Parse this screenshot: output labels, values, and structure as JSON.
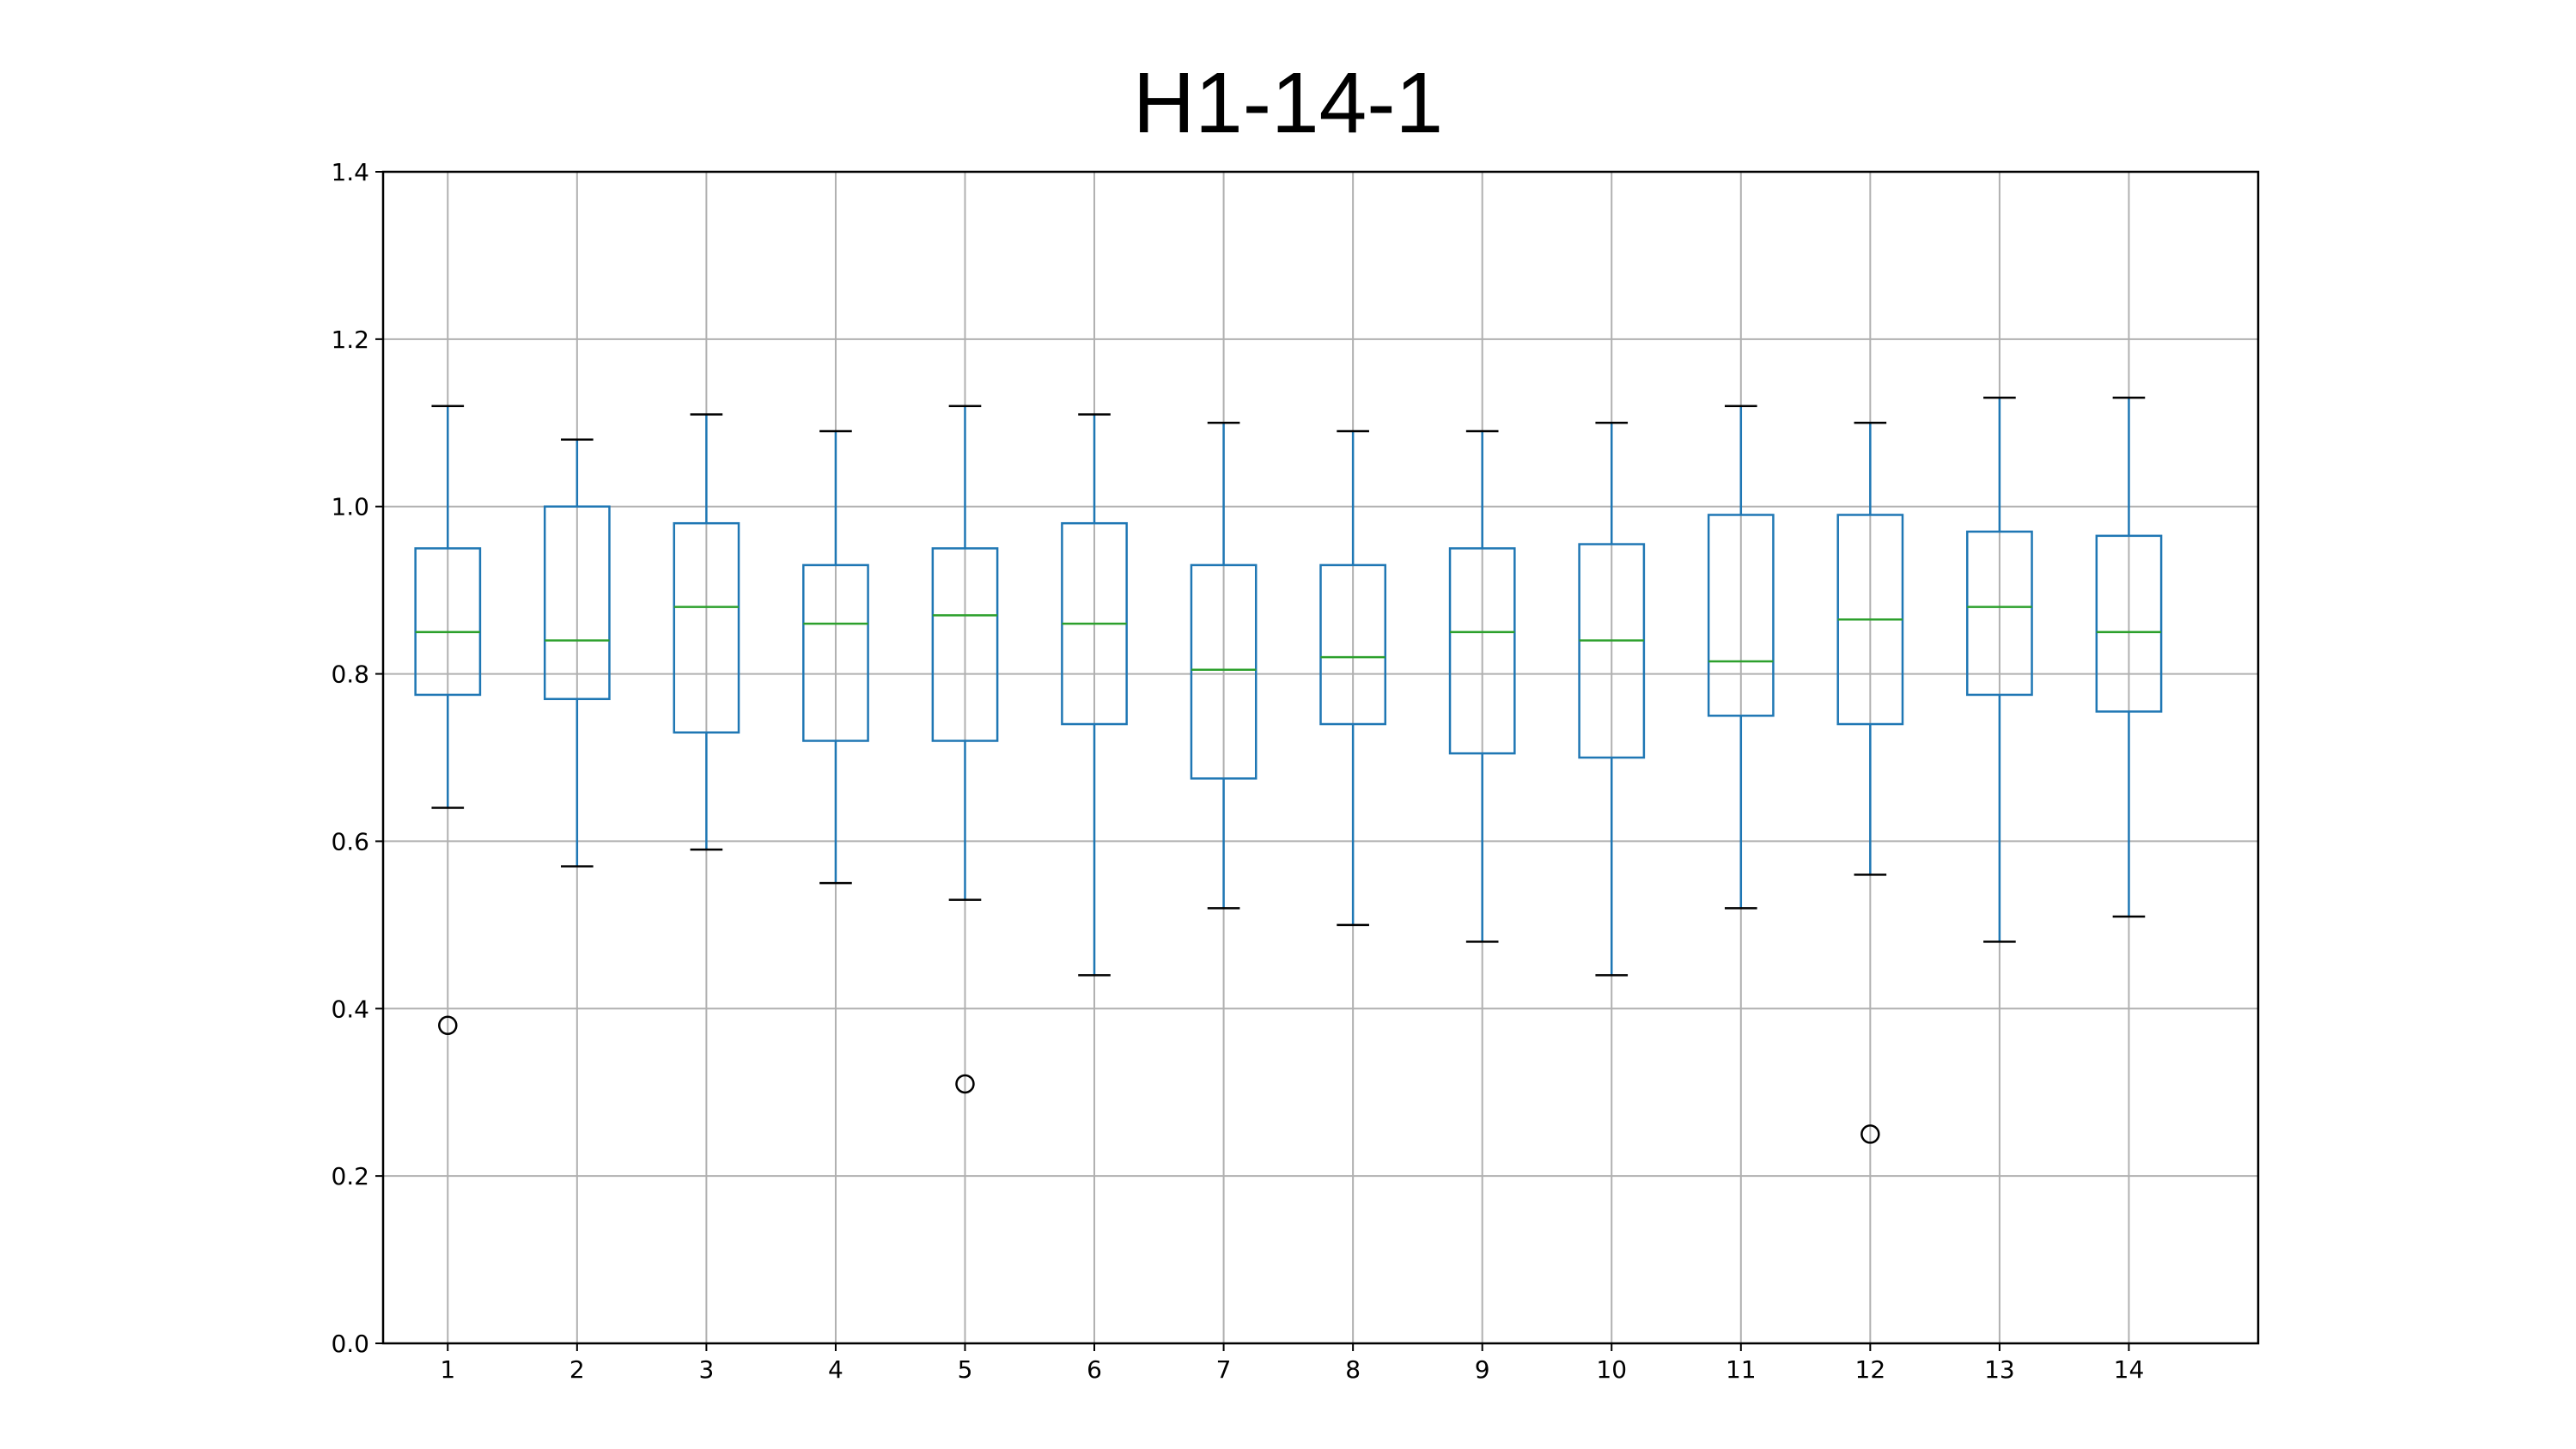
{
  "chart_data": {
    "type": "boxplot",
    "title": "H1-14-1",
    "xlabel": "",
    "ylabel": "",
    "ylim": [
      0,
      1.4
    ],
    "yticks": [
      "0.0",
      "0.2",
      "0.4",
      "0.6",
      "0.8",
      "1.0",
      "1.2",
      "1.4"
    ],
    "categories": [
      "1",
      "2",
      "3",
      "4",
      "5",
      "6",
      "7",
      "8",
      "9",
      "10",
      "11",
      "12",
      "13",
      "14"
    ],
    "grid": true,
    "colors": {
      "box": "#1f77b4",
      "median": "#2ca02c",
      "whisker": "#1f77b4",
      "cap": "#000000",
      "grid": "#b0b0b0",
      "flier": "#000000"
    },
    "boxes": [
      {
        "label": "1",
        "whislo": 0.64,
        "q1": 0.775,
        "med": 0.85,
        "q3": 0.95,
        "whishi": 1.12,
        "fliers": [
          0.38
        ]
      },
      {
        "label": "2",
        "whislo": 0.57,
        "q1": 0.77,
        "med": 0.84,
        "q3": 1.0,
        "whishi": 1.08,
        "fliers": []
      },
      {
        "label": "3",
        "whislo": 0.59,
        "q1": 0.73,
        "med": 0.88,
        "q3": 0.98,
        "whishi": 1.11,
        "fliers": []
      },
      {
        "label": "4",
        "whislo": 0.55,
        "q1": 0.72,
        "med": 0.86,
        "q3": 0.93,
        "whishi": 1.09,
        "fliers": []
      },
      {
        "label": "5",
        "whislo": 0.53,
        "q1": 0.72,
        "med": 0.87,
        "q3": 0.95,
        "whishi": 1.12,
        "fliers": [
          0.31
        ]
      },
      {
        "label": "6",
        "whislo": 0.44,
        "q1": 0.74,
        "med": 0.86,
        "q3": 0.98,
        "whishi": 1.11,
        "fliers": []
      },
      {
        "label": "7",
        "whislo": 0.52,
        "q1": 0.675,
        "med": 0.805,
        "q3": 0.93,
        "whishi": 1.1,
        "fliers": []
      },
      {
        "label": "8",
        "whislo": 0.5,
        "q1": 0.74,
        "med": 0.82,
        "q3": 0.93,
        "whishi": 1.09,
        "fliers": []
      },
      {
        "label": "9",
        "whislo": 0.48,
        "q1": 0.705,
        "med": 0.85,
        "q3": 0.95,
        "whishi": 1.09,
        "fliers": []
      },
      {
        "label": "10",
        "whislo": 0.44,
        "q1": 0.7,
        "med": 0.84,
        "q3": 0.955,
        "whishi": 1.1,
        "fliers": []
      },
      {
        "label": "11",
        "whislo": 0.52,
        "q1": 0.75,
        "med": 0.815,
        "q3": 0.99,
        "whishi": 1.12,
        "fliers": []
      },
      {
        "label": "12",
        "whislo": 0.56,
        "q1": 0.74,
        "med": 0.865,
        "q3": 0.99,
        "whishi": 1.1,
        "fliers": [
          0.25
        ]
      },
      {
        "label": "13",
        "whislo": 0.48,
        "q1": 0.775,
        "med": 0.88,
        "q3": 0.97,
        "whishi": 1.13,
        "fliers": []
      },
      {
        "label": "14",
        "whislo": 0.51,
        "q1": 0.755,
        "med": 0.85,
        "q3": 0.965,
        "whishi": 1.13,
        "fliers": []
      }
    ]
  }
}
